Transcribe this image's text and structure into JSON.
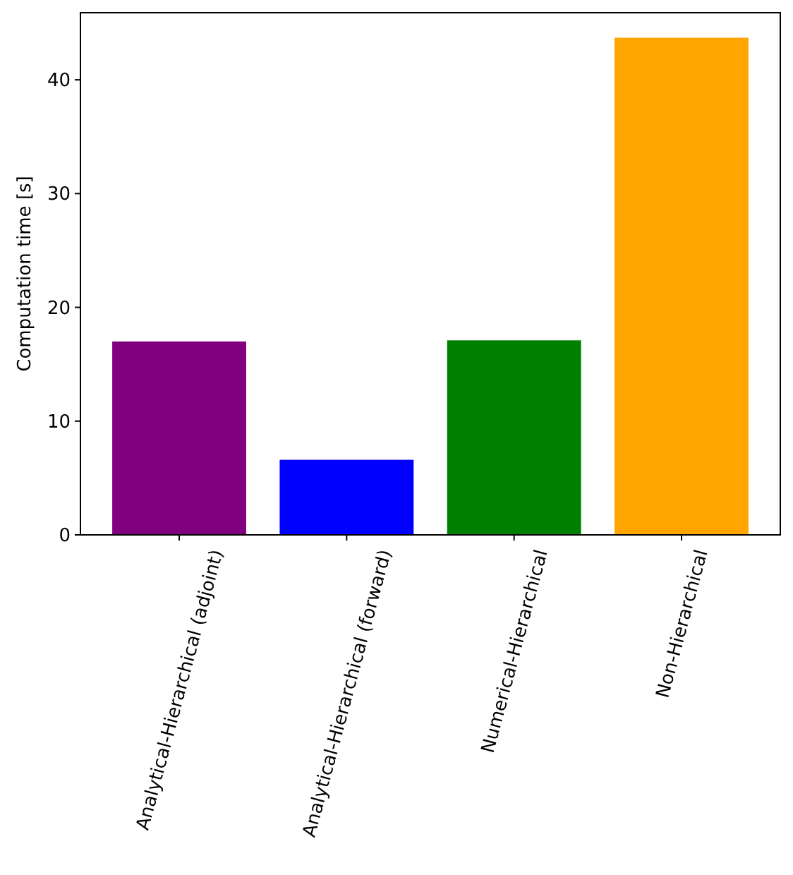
{
  "chart_data": {
    "type": "bar",
    "ylabel": "Computation time [s]",
    "categories": [
      "Analytical-Hierarchical (adjoint)",
      "Analytical-Hierarchical (forward)",
      "Numerical-Hierarchical",
      "Non-Hierarchical"
    ],
    "values": [
      17.0,
      6.6,
      17.1,
      43.7
    ],
    "colors": [
      "#800080",
      "#0000ff",
      "#008000",
      "#ffa500"
    ],
    "ylim": [
      0,
      45.9
    ],
    "yticks": [
      0,
      10,
      20,
      30,
      40
    ]
  }
}
